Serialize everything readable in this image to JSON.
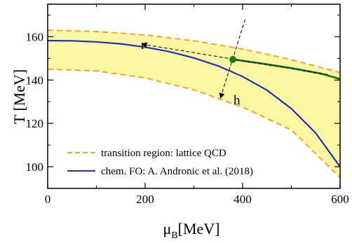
{
  "chart_data": {
    "type": "line",
    "xlabel": "μB[MeV]",
    "ylabel": "T [MeV]",
    "xlim": [
      0,
      600
    ],
    "ylim": [
      90,
      175
    ],
    "xticks": [
      0,
      200,
      400,
      600
    ],
    "yticks": [
      100,
      120,
      140,
      160
    ],
    "grid": false,
    "legend_placement": "bottom-left",
    "legend": [
      {
        "label": "transition region: lattice QCD",
        "color": "#f5a623",
        "style": "dashed"
      },
      {
        "label": "chem. FO: A. Andronic et al. (2018)",
        "color": "#1f2fbf",
        "style": "solid"
      }
    ],
    "series": [
      {
        "name": "transition region: lattice QCD",
        "role": "band-upper",
        "color": "#f5a623",
        "x": [
          0,
          100,
          200,
          300,
          400,
          500,
          600
        ],
        "y": [
          163,
          162.4,
          160.8,
          158.1,
          154.3,
          149.4,
          143.5
        ]
      },
      {
        "name": "transition region: lattice QCD",
        "role": "band-lower",
        "color": "#f5a623",
        "x": [
          0,
          100,
          200,
          300,
          400,
          500,
          600
        ],
        "y": [
          145,
          144.2,
          141,
          135.5,
          127.5,
          117,
          95
        ]
      },
      {
        "name": "chem. FO: A. Andronic et al. (2018)",
        "color": "#1f2fbf",
        "x": [
          0,
          50,
          100,
          150,
          200,
          250,
          300,
          350,
          400,
          450,
          500,
          550,
          600
        ],
        "y": [
          158.2,
          158.1,
          157.6,
          156.7,
          155.2,
          153.1,
          150.2,
          146.5,
          141.6,
          135.3,
          126.8,
          115.5,
          100
        ]
      },
      {
        "color": "#1a7a1a",
        "x": [
          380,
          440,
          500,
          560,
          600
        ],
        "y": [
          149.5,
          147.6,
          145.5,
          143,
          140.5
        ]
      }
    ],
    "critical_point": {
      "x": 380,
      "y": 149.5,
      "color": "#1a7a1a"
    },
    "axes_lines": [
      {
        "label": "r",
        "from": [
          575,
          142.5
        ],
        "to": [
          195,
          156.5
        ]
      },
      {
        "label": "h",
        "from": [
          405,
          168
        ],
        "to": [
          355,
          132
        ]
      }
    ]
  }
}
